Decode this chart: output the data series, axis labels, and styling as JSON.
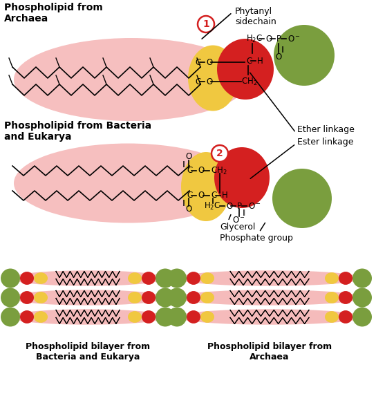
{
  "bg_color": "#ffffff",
  "pink_fill": "#f5b8b8",
  "yellow_fill": "#f0c840",
  "red_fill": "#d42020",
  "green_fill": "#7a9e3e",
  "archaea_title": "Phospholipid from\nArchaea",
  "bacteria_title": "Phospholipid from Bacteria\nand Eukarya",
  "bilayer_bacteria_label": "Phospholipid bilayer from\nBacteria and Eukarya",
  "bilayer_archaea_label": "Phospholipid bilayer from\nArchaea",
  "phytanyl_label": "Phytanyl\nsidechain",
  "ether_label": "Ether linkage",
  "ester_label": "Ester linkage",
  "glycerol_label": "Glycerol",
  "phosphate_label": "Phosphate group"
}
